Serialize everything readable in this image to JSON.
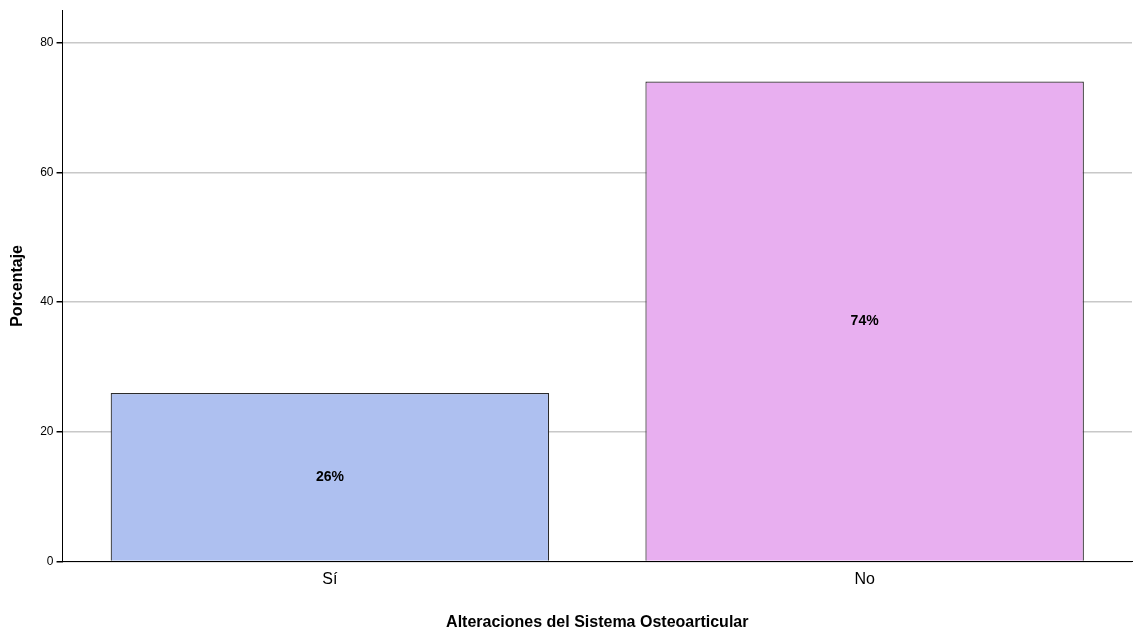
{
  "chart_data": {
    "type": "bar",
    "xlabel": "Alteraciones del Sistema Osteoarticular",
    "ylabel": "Porcentaje",
    "categories": [
      "Sí",
      "No"
    ],
    "values": [
      26,
      74
    ],
    "colors": [
      "#aec0f0",
      "#e8aff0"
    ],
    "value_labels": [
      "26%",
      "74%"
    ],
    "ylim": [
      0,
      85
    ],
    "yticks": [
      0,
      20,
      40,
      60,
      80
    ],
    "grid": "y",
    "legend": false
  }
}
